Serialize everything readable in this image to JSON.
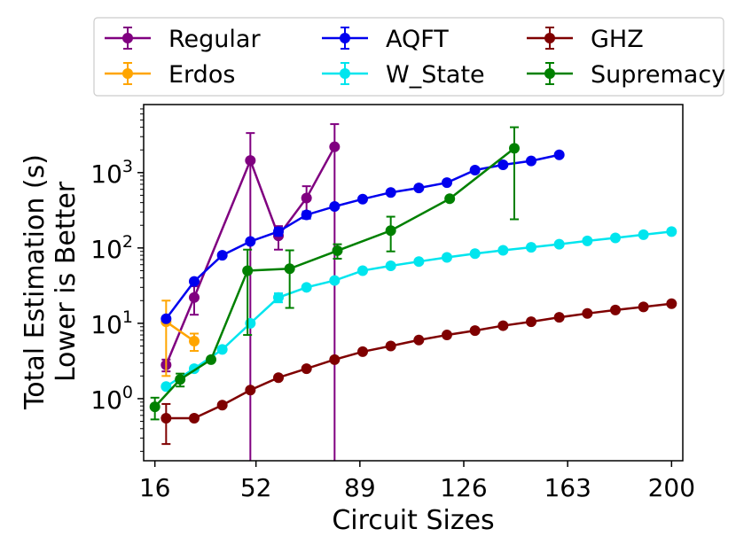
{
  "chart_data": {
    "type": "line",
    "title": "",
    "xlabel": "Circuit Sizes",
    "ylabel_lines": [
      "Total Estimation (s)",
      "Lower is Better"
    ],
    "x_ticks": [
      16,
      52,
      89,
      126,
      163,
      200
    ],
    "xlim": [
      12,
      204
    ],
    "y_scale": "log",
    "ylim": [
      0.15,
      8000
    ],
    "y_ticks": [
      {
        "value": 1,
        "base": "10",
        "exp": "0"
      },
      {
        "value": 10,
        "base": "10",
        "exp": "1"
      },
      {
        "value": 100,
        "base": "10",
        "exp": "2"
      },
      {
        "value": 1000,
        "base": "10",
        "exp": "3"
      }
    ],
    "legend_position": "top",
    "series": [
      {
        "name": "Regular",
        "color": "#800080",
        "x": [
          20,
          30,
          50,
          60,
          70,
          80
        ],
        "y": [
          2.8,
          22,
          1450,
          145,
          460,
          2200
        ],
        "err_low": [
          0.5,
          9,
          1450,
          50,
          200,
          2200
        ],
        "err_high": [
          0.5,
          9,
          1900,
          50,
          200,
          2200
        ]
      },
      {
        "name": "AQFT",
        "color": "#0000ee",
        "x": [
          20,
          30,
          40,
          50,
          60,
          70,
          80,
          90,
          100,
          110,
          120,
          130,
          140,
          150,
          160
        ],
        "y": [
          11.5,
          36,
          80,
          122,
          165,
          275,
          355,
          445,
          545,
          625,
          735,
          1080,
          1270,
          1430,
          1720
        ],
        "err_low": [
          0,
          0,
          0,
          0,
          20,
          30,
          0,
          0,
          0,
          0,
          0,
          0,
          0,
          0,
          0
        ],
        "err_high": [
          0,
          0,
          0,
          0,
          20,
          30,
          0,
          0,
          0,
          0,
          0,
          0,
          0,
          0,
          0
        ]
      },
      {
        "name": "GHZ",
        "color": "#7f0000",
        "x": [
          20,
          30,
          40,
          50,
          60,
          70,
          80,
          90,
          100,
          110,
          120,
          130,
          140,
          150,
          160,
          170,
          180,
          190,
          200
        ],
        "y": [
          0.55,
          0.55,
          0.82,
          1.3,
          1.9,
          2.5,
          3.3,
          4.2,
          5.0,
          6.0,
          7.0,
          8.0,
          9.3,
          10.5,
          12.0,
          13.5,
          15.0,
          16.5,
          18.2
        ],
        "err_low": [
          0.3,
          0,
          0,
          0,
          0,
          0,
          0,
          0,
          0,
          0,
          0,
          0,
          0,
          0,
          0,
          0,
          0,
          0,
          0
        ],
        "err_high": [
          0.3,
          0,
          0,
          0,
          0,
          0,
          0,
          0,
          0,
          0,
          0,
          0,
          0,
          0,
          0,
          0,
          0,
          0,
          0
        ]
      },
      {
        "name": "Erdos",
        "color": "#ffa500",
        "x": [
          20,
          30
        ],
        "y": [
          10.5,
          5.8
        ],
        "err_low": [
          8.5,
          1.5
        ],
        "err_high": [
          9.5,
          1.5
        ]
      },
      {
        "name": "W_State",
        "color": "#00e5ee",
        "x": [
          20,
          30,
          40,
          50,
          60,
          70,
          80,
          90,
          100,
          110,
          120,
          130,
          140,
          150,
          160,
          170,
          180,
          190,
          200
        ],
        "y": [
          1.45,
          2.5,
          4.5,
          10,
          22,
          30,
          37,
          50,
          58,
          66,
          75,
          84,
          93,
          102,
          112,
          124,
          136,
          150,
          165
        ],
        "err_low": [
          0,
          0,
          0,
          0,
          3,
          0,
          0,
          0,
          0,
          0,
          0,
          0,
          0,
          0,
          0,
          0,
          0,
          0,
          0
        ],
        "err_high": [
          0,
          0,
          0,
          0,
          3,
          0,
          0,
          0,
          0,
          0,
          0,
          0,
          0,
          0,
          0,
          0,
          0,
          0,
          0
        ]
      },
      {
        "name": "Supremacy",
        "color": "#008000",
        "x": [
          16,
          25,
          36,
          49,
          64,
          81,
          100,
          121,
          144
        ],
        "y": [
          0.78,
          1.8,
          3.3,
          50,
          53,
          92,
          170,
          450,
          2100
        ],
        "err_low": [
          0.25,
          0.35,
          0,
          43,
          37,
          20,
          80,
          0,
          1860
        ],
        "err_high": [
          0.25,
          0.35,
          0,
          45,
          40,
          20,
          90,
          0,
          1900
        ]
      }
    ]
  }
}
